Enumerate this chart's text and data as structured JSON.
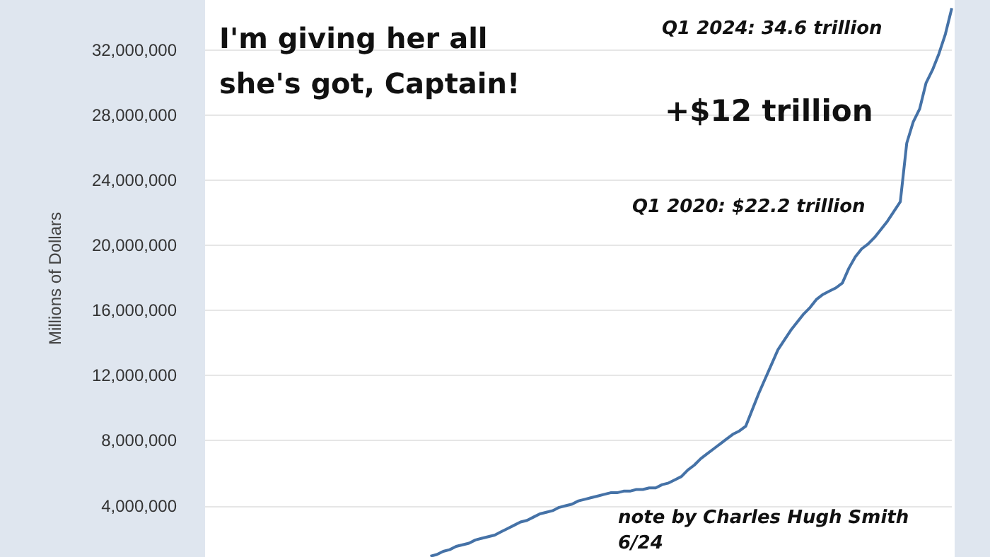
{
  "chart_data": {
    "type": "line",
    "title": "I'm giving her all she's got, Captain!",
    "ylabel": "Millions of Dollars",
    "annotations": [
      "Q1 2024: 34.6 trillion",
      "+$12 trillion",
      "Q1 2020: $22.2 trillion",
      "note by Charles Hugh Smith",
      "6/24"
    ],
    "categories": [
      null,
      null,
      null,
      null,
      null,
      null,
      null,
      null,
      null,
      null,
      null,
      null,
      null,
      null,
      null,
      null,
      null,
      null,
      null,
      null,
      null,
      null,
      null,
      null,
      null,
      null,
      null,
      null,
      null,
      null,
      null,
      null,
      null,
      null,
      null,
      null,
      null,
      null,
      null,
      null,
      null,
      null,
      null,
      null,
      null,
      null,
      null,
      null,
      null,
      null,
      null,
      null,
      null,
      null,
      null,
      null,
      null,
      null,
      null,
      null,
      null,
      null,
      null,
      null,
      null,
      null,
      null,
      null,
      null,
      null,
      null,
      null,
      null,
      null,
      null,
      null,
      null,
      null,
      null,
      null,
      null,
      null,
      null,
      null,
      null,
      null,
      null,
      null,
      null,
      null,
      null,
      null,
      null,
      null,
      null,
      null,
      null,
      null,
      null,
      null,
      null,
      null,
      null,
      null,
      null,
      null,
      null,
      null,
      null,
      null,
      null,
      null,
      null,
      null,
      null,
      null,
      null
    ],
    "series": [
      {
        "color": "#4572a7",
        "values": [
          null,
          null,
          null,
          null,
          null,
          null,
          null,
          null,
          null,
          null,
          null,
          null,
          null,
          null,
          null,
          null,
          null,
          null,
          null,
          null,
          null,
          null,
          null,
          null,
          null,
          null,
          null,
          null,
          null,
          null,
          null,
          null,
          null,
          null,
          null,
          900000,
          1000000,
          1200000,
          1300000,
          1500000,
          1600000,
          1700000,
          1900000,
          2000000,
          2100000,
          2200000,
          2400000,
          2600000,
          2800000,
          3000000,
          3100000,
          3300000,
          3500000,
          3600000,
          3700000,
          3900000,
          4000000,
          4100000,
          4300000,
          4400000,
          4500000,
          4600000,
          4700000,
          4800000,
          4800000,
          4900000,
          4900000,
          5000000,
          5000000,
          5100000,
          5100000,
          5300000,
          5400000,
          5600000,
          5800000,
          6200000,
          6500000,
          6900000,
          7200000,
          7500000,
          7800000,
          8100000,
          8400000,
          8600000,
          8900000,
          9900000,
          10900000,
          11800000,
          12700000,
          13600000,
          14200000,
          14800000,
          15300000,
          15800000,
          16200000,
          16700000,
          17000000,
          17200000,
          17400000,
          17700000,
          18600000,
          19300000,
          19800000,
          20100000,
          20500000,
          21000000,
          21500000,
          22100000,
          22700000,
          26300000,
          27600000,
          28400000,
          30000000,
          30800000,
          31800000,
          33000000,
          34600000
        ]
      }
    ],
    "ylim": [
      850000,
      35100000
    ],
    "yticks": [
      {
        "value": 4000000,
        "label": "4,000,000"
      },
      {
        "value": 8000000,
        "label": "8,000,000"
      },
      {
        "value": 12000000,
        "label": "12,000,000"
      },
      {
        "value": 16000000,
        "label": "16,000,000"
      },
      {
        "value": 20000000,
        "label": "20,000,000"
      },
      {
        "value": 24000000,
        "label": "24,000,000"
      },
      {
        "value": 28000000,
        "label": "28,000,000"
      },
      {
        "value": 32000000,
        "label": "32,000,000"
      }
    ],
    "grid": "y",
    "tick_labels": "y",
    "marker": "none",
    "line_style": "solid"
  }
}
